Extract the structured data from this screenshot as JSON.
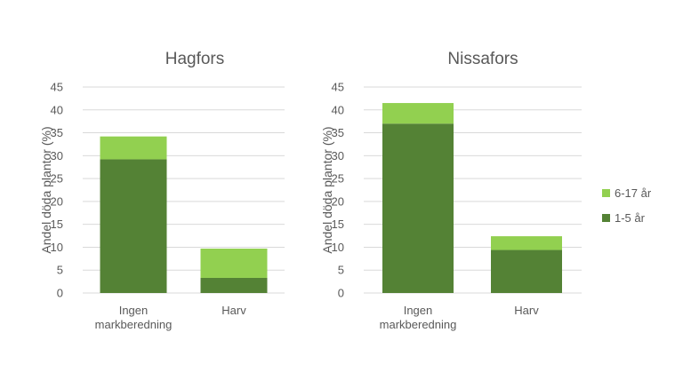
{
  "chart_data": [
    {
      "type": "bar",
      "stacked": true,
      "title": "Hagfors",
      "ylabel": "Andel döda plantor (%)",
      "xlabel": "",
      "categories": [
        [
          "Ingen",
          "markberedning"
        ],
        [
          "Harv"
        ]
      ],
      "ylim": [
        0,
        45
      ],
      "yticks": [
        0,
        5,
        10,
        15,
        20,
        25,
        30,
        35,
        40,
        45
      ],
      "grid": true,
      "series": [
        {
          "name": "1-5 år",
          "values": [
            29.2,
            3.3
          ]
        },
        {
          "name": "6-17 år",
          "values": [
            5.0,
            6.4
          ]
        }
      ]
    },
    {
      "type": "bar",
      "stacked": true,
      "title": "Nissafors",
      "ylabel": "Andel döda plantor (%)",
      "xlabel": "",
      "categories": [
        [
          "Ingen",
          "markberedning"
        ],
        [
          "Harv"
        ]
      ],
      "ylim": [
        0,
        45
      ],
      "yticks": [
        0,
        5,
        10,
        15,
        20,
        25,
        30,
        35,
        40,
        45
      ],
      "grid": true,
      "series": [
        {
          "name": "1-5 år",
          "values": [
            37.0,
            9.4
          ]
        },
        {
          "name": "6-17 år",
          "values": [
            4.5,
            3.0
          ]
        }
      ]
    }
  ],
  "legend": {
    "placement": "right",
    "items": [
      {
        "name": "6-17 år",
        "color": "#92d050"
      },
      {
        "name": "1-5 år",
        "color": "#548235"
      }
    ]
  },
  "colors": {
    "series_1_5": "#548235",
    "series_6_17": "#92d050",
    "text": "#595959",
    "grid": "#d9d9d9"
  }
}
